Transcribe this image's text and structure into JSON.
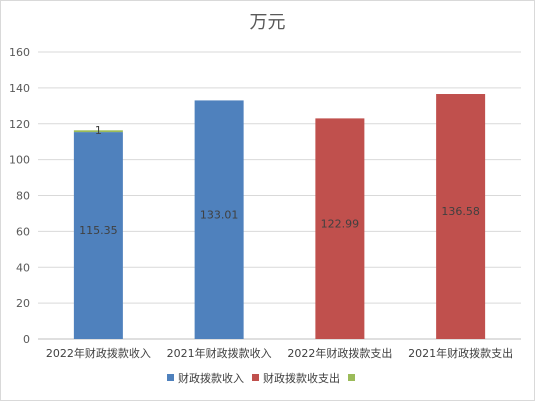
{
  "chart_data": {
    "type": "bar",
    "title": "万元",
    "categories": [
      "2022年财政拨款收入",
      "2021年财政拨款收入",
      "2022年财政拨款支出",
      "2021年财政拨款支出"
    ],
    "series": [
      {
        "name": "财政拨款收入",
        "color": "#4F81BD",
        "values": [
          115.35,
          133.01,
          null,
          null
        ]
      },
      {
        "name": "财政拨款收支出",
        "color": "#C0504D",
        "values": [
          null,
          null,
          122.99,
          136.58
        ]
      },
      {
        "name": "",
        "color": "#9BBB59",
        "values": [
          1,
          null,
          null,
          null
        ]
      }
    ],
    "stacked": true,
    "ylim": [
      0,
      160
    ],
    "yticks": [
      0,
      20,
      40,
      60,
      80,
      100,
      120,
      140,
      160
    ],
    "data_labels": [
      "115.35",
      "133.01",
      "122.99",
      "136.58",
      "1"
    ],
    "grid": true,
    "legend": "bottom"
  }
}
